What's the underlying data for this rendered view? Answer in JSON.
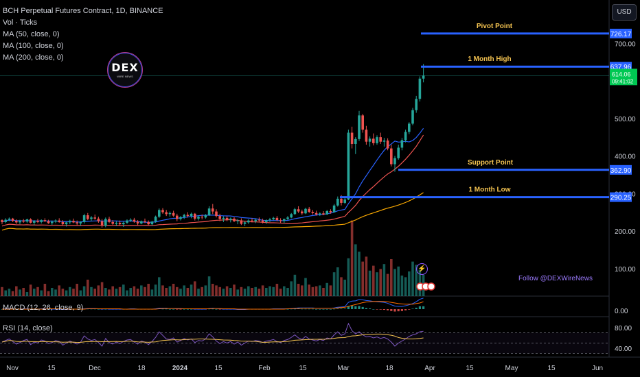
{
  "header": {
    "title": "BCH Perpetual Futures Contract, 1D, BINANCE",
    "indicators": [
      "Vol · Ticks",
      "MA (50, close, 0)",
      "MA (100, close, 0)",
      "MA (200, close, 0)"
    ],
    "currency_button": "USD"
  },
  "logo": {
    "text": "DEX",
    "subtext": "WIRE NEWS"
  },
  "follow_text": "Follow @DEXWireNews",
  "chart_data": {
    "type": "candlestick",
    "symbol": "BCH Perpetual Futures Contract",
    "interval": "1D",
    "exchange": "BINANCE",
    "price_axis": {
      "ticks": [
        700,
        500,
        400,
        300,
        200,
        100
      ],
      "labels": [
        "700.00",
        "500.00",
        "400.00",
        "300.00",
        "200.00",
        "100.00"
      ]
    },
    "x_axis_labels": [
      "Nov",
      "15",
      "Dec",
      "18",
      "2024",
      "15",
      "Feb",
      "15",
      "Mar",
      "18",
      "Apr",
      "15",
      "May",
      "15",
      "Jun"
    ],
    "last_price": "614.06",
    "countdown": "09:41:02",
    "levels": [
      {
        "label": "Pivot Point",
        "value": 726.17,
        "value_label": "726.17"
      },
      {
        "label": "1 Month High",
        "value": 637.96,
        "value_label": "637.96"
      },
      {
        "label": "Support Point",
        "value": 362.9,
        "value_label": "362.90"
      },
      {
        "label": "1 Month Low",
        "value": 290.25,
        "value_label": "290.25"
      }
    ],
    "candles": [
      [
        229,
        231,
        218,
        224
      ],
      [
        224,
        234,
        221,
        230
      ],
      [
        230,
        236,
        226,
        233
      ],
      [
        233,
        235,
        224,
        227
      ],
      [
        227,
        231,
        219,
        223
      ],
      [
        223,
        230,
        218,
        228
      ],
      [
        228,
        232,
        222,
        225
      ],
      [
        225,
        233,
        221,
        231
      ],
      [
        231,
        234,
        220,
        222
      ],
      [
        222,
        229,
        215,
        227
      ],
      [
        227,
        232,
        221,
        224
      ],
      [
        224,
        231,
        220,
        229
      ],
      [
        229,
        234,
        224,
        226
      ],
      [
        226,
        230,
        219,
        221
      ],
      [
        221,
        228,
        216,
        225
      ],
      [
        225,
        231,
        221,
        228
      ],
      [
        228,
        234,
        222,
        224
      ],
      [
        224,
        229,
        215,
        218
      ],
      [
        218,
        225,
        212,
        223
      ],
      [
        223,
        230,
        218,
        227
      ],
      [
        227,
        233,
        221,
        223
      ],
      [
        223,
        228,
        216,
        220
      ],
      [
        220,
        226,
        214,
        224
      ],
      [
        224,
        246,
        220,
        242
      ],
      [
        242,
        248,
        229,
        232
      ],
      [
        232,
        240,
        226,
        236
      ],
      [
        236,
        244,
        230,
        233
      ],
      [
        233,
        238,
        222,
        226
      ],
      [
        226,
        232,
        209,
        214
      ],
      [
        214,
        236,
        210,
        232
      ],
      [
        232,
        238,
        221,
        224
      ],
      [
        224,
        229,
        216,
        219
      ],
      [
        219,
        226,
        213,
        222
      ],
      [
        222,
        228,
        215,
        218
      ],
      [
        218,
        225,
        211,
        222
      ],
      [
        222,
        231,
        219,
        228
      ],
      [
        228,
        234,
        224,
        230
      ],
      [
        230,
        235,
        222,
        225
      ],
      [
        225,
        229,
        216,
        220
      ],
      [
        220,
        228,
        218,
        226
      ],
      [
        226,
        233,
        221,
        224
      ],
      [
        224,
        228,
        216,
        218
      ],
      [
        218,
        227,
        214,
        225
      ],
      [
        225,
        241,
        222,
        238
      ],
      [
        238,
        260,
        235,
        256
      ],
      [
        256,
        261,
        246,
        250
      ],
      [
        250,
        256,
        240,
        245
      ],
      [
        245,
        252,
        238,
        248
      ],
      [
        248,
        254,
        238,
        241
      ],
      [
        241,
        246,
        226,
        232
      ],
      [
        232,
        240,
        228,
        237
      ],
      [
        237,
        246,
        232,
        243
      ],
      [
        243,
        250,
        236,
        240
      ],
      [
        240,
        249,
        234,
        246
      ],
      [
        246,
        248,
        228,
        233
      ],
      [
        233,
        241,
        228,
        238
      ],
      [
        238,
        244,
        231,
        236
      ],
      [
        236,
        245,
        233,
        242
      ],
      [
        242,
        266,
        240,
        260
      ],
      [
        260,
        272,
        245,
        252
      ],
      [
        252,
        258,
        236,
        240
      ],
      [
        240,
        246,
        226,
        232
      ],
      [
        232,
        239,
        224,
        235
      ],
      [
        235,
        240,
        226,
        229
      ],
      [
        229,
        236,
        223,
        233
      ],
      [
        233,
        237,
        224,
        226
      ],
      [
        226,
        232,
        218,
        228
      ],
      [
        228,
        234,
        216,
        219
      ],
      [
        219,
        226,
        213,
        223
      ],
      [
        223,
        231,
        219,
        228
      ],
      [
        228,
        234,
        223,
        226
      ],
      [
        226,
        232,
        221,
        230
      ],
      [
        230,
        236,
        225,
        228
      ],
      [
        228,
        233,
        220,
        224
      ],
      [
        224,
        231,
        219,
        229
      ],
      [
        229,
        235,
        224,
        231
      ],
      [
        231,
        238,
        228,
        235
      ],
      [
        235,
        240,
        226,
        229
      ],
      [
        229,
        234,
        222,
        227
      ],
      [
        227,
        233,
        221,
        232
      ],
      [
        232,
        240,
        229,
        236
      ],
      [
        236,
        248,
        234,
        245
      ],
      [
        245,
        262,
        243,
        258
      ],
      [
        258,
        266,
        248,
        252
      ],
      [
        252,
        257,
        243,
        247
      ],
      [
        247,
        262,
        245,
        259
      ],
      [
        259,
        264,
        248,
        251
      ],
      [
        251,
        256,
        244,
        248
      ],
      [
        248,
        254,
        241,
        244
      ],
      [
        244,
        250,
        240,
        247
      ],
      [
        247,
        253,
        242,
        244
      ],
      [
        244,
        256,
        243,
        253
      ],
      [
        253,
        258,
        246,
        250
      ],
      [
        250,
        272,
        249,
        268
      ],
      [
        268,
        292,
        265,
        286
      ],
      [
        286,
        296,
        268,
        275
      ],
      [
        275,
        288,
        272,
        284
      ],
      [
        284,
        470,
        282,
        462
      ],
      [
        462,
        478,
        420,
        432
      ],
      [
        432,
        450,
        405,
        445
      ],
      [
        445,
        520,
        440,
        508
      ],
      [
        508,
        512,
        462,
        470
      ],
      [
        470,
        480,
        430,
        438
      ],
      [
        438,
        452,
        425,
        446
      ],
      [
        446,
        460,
        428,
        434
      ],
      [
        434,
        455,
        430,
        450
      ],
      [
        450,
        462,
        432,
        438
      ],
      [
        438,
        448,
        425,
        441
      ],
      [
        441,
        447,
        415,
        420
      ],
      [
        420,
        430,
        372,
        378
      ],
      [
        378,
        400,
        358,
        394
      ],
      [
        394,
        430,
        390,
        422
      ],
      [
        422,
        448,
        415,
        442
      ],
      [
        442,
        470,
        436,
        464
      ],
      [
        464,
        490,
        458,
        486
      ],
      [
        486,
        528,
        482,
        522
      ],
      [
        522,
        560,
        515,
        552
      ],
      [
        552,
        612,
        545,
        606
      ],
      [
        606,
        645,
        596,
        614
      ]
    ],
    "volume": [
      22,
      14,
      18,
      12,
      24,
      16,
      20,
      10,
      28,
      18,
      22,
      14,
      30,
      12,
      20,
      16,
      26,
      18,
      14,
      22,
      18,
      30,
      14,
      24,
      40,
      22,
      18,
      26,
      34,
      20,
      16,
      24,
      18,
      22,
      28,
      14,
      20,
      24,
      18,
      26,
      22,
      30,
      16,
      28,
      46,
      26,
      20,
      24,
      30,
      22,
      18,
      26,
      20,
      28,
      36,
      18,
      22,
      26,
      48,
      30,
      26,
      22,
      18,
      24,
      20,
      28,
      16,
      22,
      18,
      24,
      20,
      22,
      18,
      26,
      20,
      24,
      22,
      30,
      18,
      24,
      20,
      36,
      52,
      30,
      26,
      44,
      28,
      22,
      24,
      26,
      20,
      32,
      26,
      58,
      70,
      46,
      40,
      92,
      184,
      126,
      108,
      84,
      96,
      62,
      74,
      58,
      66,
      78,
      54,
      90,
      66,
      72,
      50,
      46,
      60,
      84,
      76,
      64,
      52
    ],
    "macd": [
      0,
      1,
      1,
      0,
      0,
      0,
      1,
      1,
      0,
      0,
      0,
      1,
      1,
      1,
      0,
      0,
      0,
      -1,
      -1,
      0,
      0,
      0,
      0,
      1,
      2,
      2,
      2,
      1,
      0,
      1,
      0,
      0,
      0,
      0,
      0,
      0,
      1,
      1,
      0,
      0,
      0,
      0,
      0,
      1,
      3,
      3,
      3,
      2,
      2,
      1,
      1,
      1,
      1,
      1,
      0,
      0,
      0,
      0,
      2,
      3,
      2,
      1,
      0,
      0,
      0,
      0,
      -1,
      -1,
      -1,
      0,
      0,
      0,
      0,
      0,
      0,
      0,
      1,
      1,
      1,
      1,
      1,
      2,
      3,
      4,
      4,
      4,
      4,
      4,
      3,
      3,
      3,
      3,
      3,
      4,
      6,
      7,
      8,
      22,
      26,
      27,
      31,
      30,
      28,
      27,
      25,
      24,
      23,
      22,
      19,
      14,
      10,
      9,
      9,
      11,
      14,
      18,
      24,
      32,
      36
    ],
    "macd_signal": [
      0,
      0,
      0,
      0,
      0,
      0,
      0,
      0,
      0,
      0,
      0,
      0,
      0,
      1,
      1,
      1,
      1,
      0,
      0,
      0,
      0,
      0,
      0,
      0,
      1,
      1,
      1,
      1,
      1,
      1,
      1,
      1,
      1,
      1,
      0,
      0,
      0,
      0,
      0,
      0,
      0,
      0,
      0,
      0,
      1,
      2,
      2,
      2,
      2,
      2,
      2,
      1,
      1,
      1,
      1,
      1,
      1,
      1,
      1,
      2,
      2,
      2,
      1,
      1,
      1,
      1,
      0,
      0,
      0,
      0,
      0,
      0,
      0,
      0,
      0,
      0,
      0,
      0,
      0,
      0,
      1,
      1,
      2,
      2,
      3,
      3,
      3,
      3,
      3,
      3,
      3,
      3,
      3,
      3,
      4,
      5,
      6,
      9,
      12,
      15,
      18,
      21,
      23,
      24,
      25,
      25,
      25,
      25,
      24,
      22,
      20,
      18,
      17,
      16,
      16,
      16,
      18,
      20,
      24
    ],
    "rsi": [
      52,
      55,
      58,
      53,
      48,
      51,
      55,
      57,
      47,
      52,
      50,
      56,
      54,
      49,
      51,
      55,
      53,
      46,
      50,
      54,
      51,
      48,
      52,
      64,
      58,
      55,
      57,
      51,
      44,
      59,
      51,
      48,
      52,
      49,
      53,
      56,
      57,
      52,
      48,
      54,
      52,
      47,
      53,
      61,
      72,
      65,
      58,
      57,
      60,
      52,
      55,
      59,
      56,
      58,
      51,
      55,
      54,
      58,
      68,
      62,
      54,
      49,
      53,
      50,
      53,
      48,
      52,
      46,
      50,
      54,
      53,
      55,
      54,
      51,
      54,
      55,
      57,
      53,
      51,
      55,
      57,
      61,
      66,
      60,
      57,
      63,
      58,
      56,
      54,
      57,
      55,
      60,
      58,
      66,
      72,
      65,
      68,
      88,
      74,
      68,
      72,
      66,
      62,
      63,
      60,
      62,
      59,
      61,
      58,
      52,
      44,
      50,
      54,
      58,
      63,
      66,
      68,
      72,
      73
    ],
    "rsi_axis": {
      "labels": [
        "80.00",
        "40.00"
      ]
    },
    "macd_axis": {
      "labels": [
        "0.00"
      ]
    },
    "panels": [
      {
        "title": "MACD (12, 26, close, 9)"
      },
      {
        "title": "RSI (14, close)"
      }
    ]
  }
}
